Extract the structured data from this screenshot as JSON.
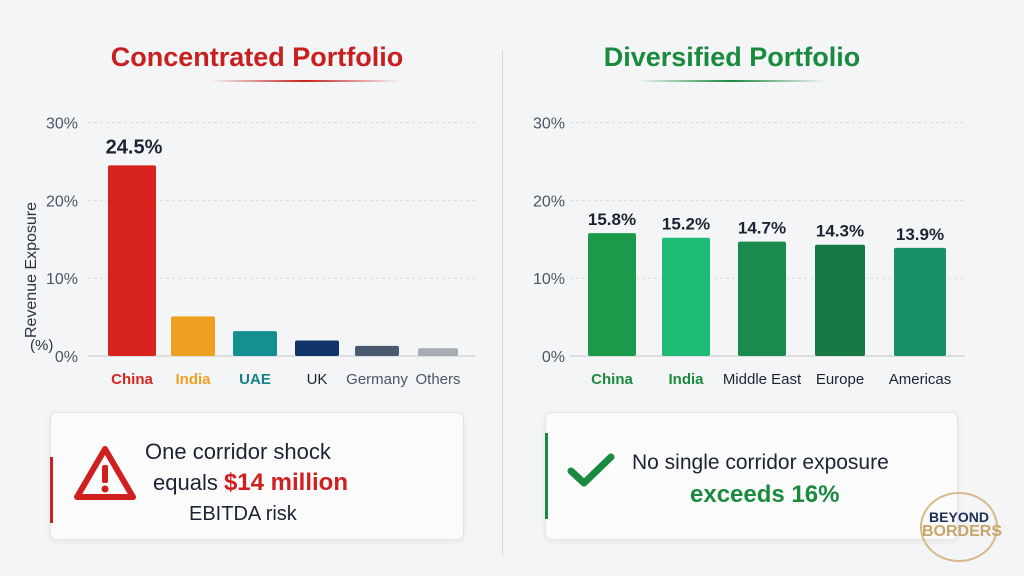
{
  "chart_data": [
    {
      "type": "bar",
      "title": "Concentrated Portfolio",
      "ylabel": "Revenue Exposure (%)",
      "ylim": [
        0,
        30
      ],
      "yticks": [
        "0%",
        "10%",
        "20%",
        "30%"
      ],
      "grid": true,
      "categories": [
        "China",
        "India",
        "UAE",
        "UK",
        "Germany",
        "Others"
      ],
      "values": [
        24.5,
        5.1,
        3.2,
        2.0,
        1.3,
        1.0
      ],
      "data_labels": [
        "24.5%",
        "",
        "",
        "",
        "",
        ""
      ],
      "colors": [
        "#d8231d",
        "#f0a020",
        "#13908f",
        "#12336a",
        "#4b5a6e",
        "#a4abb5"
      ],
      "label_colors": [
        "#d8231d",
        "#f0a020",
        "#13808a",
        "#1c2433",
        "#4b5565",
        "#4b5565"
      ]
    },
    {
      "type": "bar",
      "title": "Diversified Portfolio",
      "ylim": [
        0,
        30
      ],
      "yticks": [
        "0%",
        "10%",
        "20%",
        "30%"
      ],
      "grid": true,
      "categories": [
        "China",
        "India",
        "Middle East",
        "Europe",
        "Americas"
      ],
      "values": [
        15.8,
        15.2,
        14.7,
        14.3,
        13.9
      ],
      "data_labels": [
        "15.8%",
        "15.2%",
        "14.7%",
        "14.3%",
        "13.9%"
      ],
      "colors": [
        "#1c9a4c",
        "#1dbb73",
        "#1a8a4e",
        "#177a44",
        "#1a9068"
      ],
      "label_colors": [
        "#1a8a3e",
        "#1a8a3e",
        "#1c2433",
        "#1c2433",
        "#1c2433"
      ]
    }
  ],
  "left_box": {
    "line1": "One corridor shock",
    "line2a": "equals ",
    "line2b": "$14 million",
    "line3": "EBITDA risk",
    "icon": "warning-icon"
  },
  "right_box": {
    "line1": "No single corridor exposure",
    "line2": "exceeds 16%",
    "icon": "checkmark-icon"
  },
  "logo": {
    "line1": "BEYOND",
    "line2": "BORDERS"
  },
  "colors": {
    "red": "#d01f1f",
    "green": "#1a8a3e"
  }
}
